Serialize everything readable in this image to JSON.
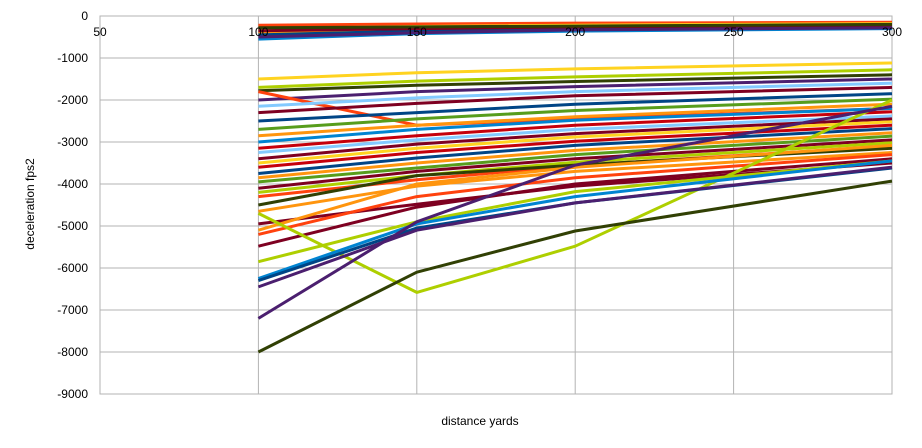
{
  "chart_data": {
    "type": "line",
    "title": "",
    "xlabel": "distance yards",
    "ylabel": "deceleration fps2",
    "xlim": [
      50,
      300
    ],
    "ylim": [
      -9000,
      0
    ],
    "x_ticks": [
      50,
      100,
      150,
      200,
      250,
      300
    ],
    "y_ticks": [
      0,
      -1000,
      -2000,
      -3000,
      -4000,
      -5000,
      -6000,
      -7000,
      -8000,
      -9000
    ],
    "grid": true,
    "legend": "none",
    "x": [
      100,
      150,
      200,
      300
    ],
    "series": [
      {
        "color": "#ff420e",
        "values": [
          -220,
          -190,
          -170,
          -150
        ]
      },
      {
        "color": "#ffd320",
        "values": [
          -300,
          -250,
          -220,
          -180
        ]
      },
      {
        "color": "#ff950e",
        "values": [
          -380,
          -320,
          -280,
          -230
        ]
      },
      {
        "color": "#004586",
        "values": [
          -450,
          -360,
          -320,
          -270
        ]
      },
      {
        "color": "#7e0021",
        "values": [
          -350,
          -300,
          -260,
          -220
        ]
      },
      {
        "color": "#0084d1",
        "values": [
          -550,
          -420,
          -360,
          -300
        ]
      },
      {
        "color": "#314004",
        "values": [
          -280,
          -260,
          -240,
          -200
        ]
      },
      {
        "color": "#4b1f6f",
        "values": [
          -500,
          -400,
          -330,
          -280
        ]
      },
      {
        "color": "#ffd320",
        "values": [
          -1500,
          -1350,
          -1260,
          -1120
        ]
      },
      {
        "color": "#aecf00",
        "values": [
          -1700,
          -1550,
          -1450,
          -1280
        ]
      },
      {
        "color": "#314004",
        "values": [
          -1780,
          -1650,
          -1560,
          -1400
        ]
      },
      {
        "color": "#4b1f6f",
        "values": [
          -2000,
          -1800,
          -1680,
          -1500
        ]
      },
      {
        "color": "#ff420e",
        "values": [
          -1800,
          -2600,
          -2450,
          -2200
        ]
      },
      {
        "color": "#83caff",
        "values": [
          -2150,
          -1950,
          -1800,
          -1600
        ]
      },
      {
        "color": "#7e0021",
        "values": [
          -2300,
          -2080,
          -1900,
          -1700
        ]
      },
      {
        "color": "#004586",
        "values": [
          -2500,
          -2300,
          -2100,
          -1850
        ]
      },
      {
        "color": "#579d1c",
        "values": [
          -2700,
          -2450,
          -2250,
          -1980
        ]
      },
      {
        "color": "#ff950e",
        "values": [
          -2850,
          -2600,
          -2400,
          -2100
        ]
      },
      {
        "color": "#0084d1",
        "values": [
          -3000,
          -2700,
          -2480,
          -2200
        ]
      },
      {
        "color": "#c5000b",
        "values": [
          -3150,
          -2850,
          -2600,
          -2280
        ]
      },
      {
        "color": "#83caff",
        "values": [
          -3250,
          -2950,
          -2700,
          -2380
        ]
      },
      {
        "color": "#7e0021",
        "values": [
          -3400,
          -3050,
          -2800,
          -2450
        ]
      },
      {
        "color": "#ffd320",
        "values": [
          -3500,
          -3150,
          -2880,
          -2520
        ]
      },
      {
        "color": "#c5000b",
        "values": [
          -3600,
          -3250,
          -2980,
          -2600
        ]
      },
      {
        "color": "#004586",
        "values": [
          -3750,
          -3380,
          -3080,
          -2680
        ]
      },
      {
        "color": "#ff950e",
        "values": [
          -3850,
          -3500,
          -3200,
          -2780
        ]
      },
      {
        "color": "#579d1c",
        "values": [
          -3950,
          -3620,
          -3300,
          -2860
        ]
      },
      {
        "color": "#7e0021",
        "values": [
          -4100,
          -3700,
          -3400,
          -2950
        ]
      },
      {
        "color": "#aecf00",
        "values": [
          -4200,
          -3800,
          -3480,
          -3020
        ]
      },
      {
        "color": "#ff420e",
        "values": [
          -4300,
          -3900,
          -3560,
          -3100
        ]
      },
      {
        "color": "#314004",
        "values": [
          -4500,
          -3800,
          -3550,
          -3150
        ]
      },
      {
        "color": "#ff950e",
        "values": [
          -4650,
          -4050,
          -3700,
          -3250
        ]
      },
      {
        "color": "#7e0021",
        "values": [
          -4950,
          -4480,
          -4050,
          -3500
        ]
      },
      {
        "color": "#ff950e",
        "values": [
          -5100,
          -4000,
          -3600,
          -3080
        ]
      },
      {
        "color": "#ff420e",
        "values": [
          -5200,
          -4300,
          -3850,
          -3300
        ]
      },
      {
        "color": "#7e0021",
        "values": [
          -5480,
          -4550,
          -4000,
          -3400
        ]
      },
      {
        "color": "#aecf00",
        "values": [
          -5850,
          -4900,
          -4180,
          -3450
        ]
      },
      {
        "color": "#aecf00",
        "values": [
          -4700,
          -6580,
          -5480,
          -2000
        ]
      },
      {
        "color": "#0084d1",
        "values": [
          -6250,
          -4950,
          -4300,
          -3450
        ]
      },
      {
        "color": "#004586",
        "values": [
          -6300,
          -5050,
          -4450,
          -3620
        ]
      },
      {
        "color": "#4b1f6f",
        "values": [
          -6450,
          -5100,
          -4450,
          -3600
        ]
      },
      {
        "color": "#4b1f6f",
        "values": [
          -7200,
          -4900,
          -3550,
          -2150
        ]
      },
      {
        "color": "#314004",
        "values": [
          -8000,
          -6100,
          -5120,
          -3930
        ]
      }
    ]
  }
}
